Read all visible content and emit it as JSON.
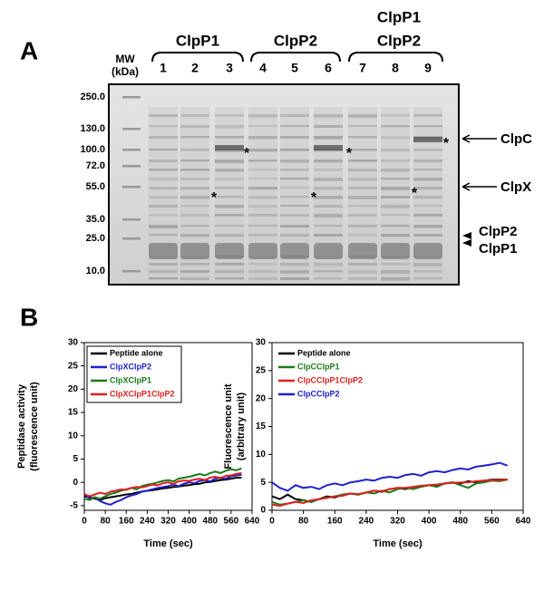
{
  "panel_a": {
    "label": "A",
    "mw_label": [
      "MW",
      "(kDa)"
    ],
    "groups": [
      {
        "lines": [
          "ClpP1"
        ]
      },
      {
        "lines": [
          "ClpP2"
        ]
      },
      {
        "lines": [
          "ClpP1",
          "ClpP2"
        ]
      }
    ],
    "lanes": [
      "1",
      "2",
      "3",
      "4",
      "5",
      "6",
      "7",
      "8",
      "9"
    ],
    "mw_markers": [
      "250.0",
      "130.0",
      "100.0",
      "72.0",
      "55.0",
      "35.0",
      "25.0",
      "10.0"
    ],
    "bands": [
      "ClpC",
      "ClpX",
      "ClpP2",
      "ClpP1"
    ],
    "asterisk": "*"
  },
  "panel_b": {
    "label": "B"
  },
  "chart_data": [
    {
      "type": "line",
      "ylabel": [
        "Peptidase activity",
        "(fluorescence unit)"
      ],
      "xlabel": "Time (sec)",
      "x": [
        0,
        20,
        40,
        60,
        80,
        100,
        120,
        140,
        160,
        180,
        200,
        220,
        240,
        260,
        280,
        300,
        320,
        340,
        360,
        380,
        400,
        420,
        440,
        460,
        480,
        500,
        520,
        540,
        560,
        580,
        600
      ],
      "xlim": [
        0,
        640
      ],
      "xticks": [
        0,
        80,
        160,
        240,
        320,
        400,
        480,
        560,
        640
      ],
      "ylim": [
        -6,
        30
      ],
      "yticks": [
        -5,
        0,
        5,
        10,
        15,
        20,
        25,
        30
      ],
      "legend_frame": true,
      "series": [
        {
          "name": "Peptide alone",
          "color": "#000000",
          "values": [
            -3,
            -3.2,
            -3.5,
            -3.8,
            -3.4,
            -3.2,
            -3,
            -2.8,
            -2.6,
            -2.5,
            -2.2,
            -2,
            -1.8,
            -1.7,
            -1.5,
            -1.3,
            -1.2,
            -1,
            -0.9,
            -0.7,
            -0.6,
            -0.4,
            -0.3,
            0,
            0.1,
            0.3,
            0.5,
            0.6,
            0.8,
            1,
            1
          ]
        },
        {
          "name": "ClpXClpP2",
          "color": "#2020cc",
          "values": [
            -2.5,
            -3.5,
            -3.2,
            -4,
            -4.5,
            -4.8,
            -4.2,
            -3.8,
            -3.2,
            -2.8,
            -2.5,
            -2,
            -1.8,
            -1.5,
            -1.2,
            -1,
            -0.8,
            -0.5,
            -0.8,
            -0.3,
            0,
            -0.2,
            0.3,
            0.5,
            0.2,
            0.8,
            1,
            0.8,
            1.3,
            1.5,
            1.6
          ]
        },
        {
          "name": "ClpXClpP1",
          "color": "#1a7a1a",
          "values": [
            -3.5,
            -3.8,
            -3.2,
            -3.5,
            -3,
            -2.5,
            -2.2,
            -1.8,
            -1.5,
            -1.2,
            -1.5,
            -0.8,
            -0.5,
            -0.3,
            0,
            0.3,
            0.5,
            0.2,
            0.8,
            1,
            1.2,
            1.5,
            1.8,
            1.5,
            2,
            2.3,
            2,
            2.5,
            2.8,
            2.6,
            3
          ]
        },
        {
          "name": "ClpXClpP1ClpP2",
          "color": "#e02020",
          "values": [
            -2.5,
            -3,
            -2.6,
            -2.2,
            -2.5,
            -2,
            -1.8,
            -1.5,
            -1.6,
            -1.2,
            -1,
            -1.1,
            -0.8,
            -0.5,
            -0.6,
            -0.2,
            0,
            -0.3,
            0.2,
            0.4,
            0.3,
            0.6,
            0.8,
            0.5,
            1,
            1.2,
            0.9,
            1.4,
            1.5,
            1.8,
            2
          ]
        }
      ]
    },
    {
      "type": "line",
      "ylabel": [
        "Fluorescence unit",
        "(arbitrary unit)"
      ],
      "xlabel": "Time (sec)",
      "x": [
        0,
        20,
        40,
        60,
        80,
        100,
        120,
        140,
        160,
        180,
        200,
        220,
        240,
        260,
        280,
        300,
        320,
        340,
        360,
        380,
        400,
        420,
        440,
        460,
        480,
        500,
        520,
        540,
        560,
        580,
        600
      ],
      "xlim": [
        0,
        640
      ],
      "xticks": [
        0,
        80,
        160,
        240,
        320,
        400,
        480,
        560,
        640
      ],
      "ylim": [
        0,
        30
      ],
      "yticks": [
        0,
        5,
        10,
        15,
        20,
        25,
        30
      ],
      "legend_frame": false,
      "series": [
        {
          "name": "Peptide alone",
          "color": "#000000",
          "values": [
            2.5,
            2,
            2.8,
            2,
            1.8,
            1.5,
            2,
            2.5,
            2.3,
            2.8,
            3,
            2.8,
            3.2,
            3.5,
            3.3,
            3.8,
            4,
            3.8,
            4.2,
            4.3,
            4.5,
            4.3,
            4.8,
            5,
            4.8,
            5.2,
            5,
            5.3,
            5.5,
            5.5,
            5.5
          ]
        },
        {
          "name": "ClpCClpP1",
          "color": "#1a7a1a",
          "values": [
            1.5,
            1,
            1.2,
            1.5,
            1.8,
            1.5,
            2,
            2.3,
            2.5,
            2.8,
            3,
            2.8,
            3.2,
            3,
            3.5,
            3.2,
            3.8,
            4,
            3.8,
            4.2,
            4.5,
            4.2,
            4.8,
            5,
            4.5,
            4,
            4.8,
            5,
            5.3,
            5.2,
            5.5
          ]
        },
        {
          "name": "ClpCClpP1ClpP2",
          "color": "#e02020",
          "values": [
            1,
            0.8,
            1.2,
            1.5,
            1.3,
            1.8,
            2,
            2.2,
            2.5,
            2.6,
            3,
            2.9,
            3.2,
            3.5,
            3.4,
            3.8,
            4,
            4,
            4.2,
            4.4,
            4.5,
            4.6,
            4.8,
            4.9,
            5,
            5,
            5.2,
            5.3,
            5.4,
            5.4,
            5.5
          ]
        },
        {
          "name": "ClpCClpP2",
          "color": "#2020cc",
          "values": [
            5,
            4,
            3.5,
            4.5,
            4,
            4.2,
            3.8,
            4.5,
            4.8,
            4.5,
            5,
            5.2,
            5.5,
            5.3,
            5.8,
            6,
            5.8,
            6.3,
            6.5,
            6.2,
            6.8,
            7,
            6.8,
            7.2,
            7.5,
            7.3,
            7.8,
            8,
            8.2,
            8.5,
            8
          ]
        }
      ]
    }
  ]
}
